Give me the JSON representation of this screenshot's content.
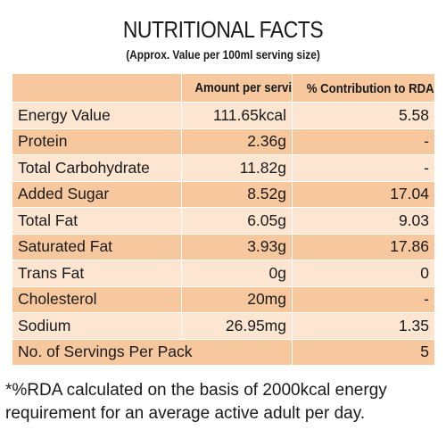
{
  "title": "NUTRITIONAL FACTS",
  "subtitle": "(Approx. Value per 100ml serving size)",
  "table": {
    "header_amount": "Amount per serving",
    "header_rda": "% Contribution to RDA",
    "header_rda_mark": "*",
    "rows": [
      {
        "name": "Energy Value",
        "amount": "111.65kcal",
        "rda": "5.58"
      },
      {
        "name": "Protein",
        "amount": "2.36g",
        "rda": "-"
      },
      {
        "name": "Total Carbohydrate",
        "amount": "11.82g",
        "rda": "-"
      },
      {
        "name": "Added Sugar",
        "amount": "8.52g",
        "rda": "17.04"
      },
      {
        "name": "Total Fat",
        "amount": "6.05g",
        "rda": "9.03"
      },
      {
        "name": "Saturated Fat",
        "amount": "3.93g",
        "rda": "17.86"
      },
      {
        "name": "Trans Fat",
        "amount": "0g",
        "rda": "0"
      },
      {
        "name": "Cholesterol",
        "amount": "20mg",
        "rda": "-"
      },
      {
        "name": "Sodium",
        "amount": "26.95mg",
        "rda": "1.35"
      },
      {
        "name": "No. of Servings Per Pack",
        "amount": "",
        "rda": "5"
      }
    ]
  },
  "footnote": "*%RDA calculated on the basis of 2000kcal energy requirement for an average active adult per day.",
  "colors": {
    "dark_row": "#f7c89e",
    "light_row": "#fce5d1"
  }
}
